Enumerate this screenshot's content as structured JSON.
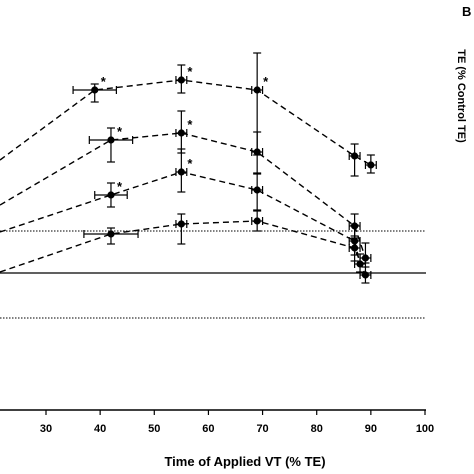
{
  "panel_letter": "B",
  "chart_data": {
    "type": "line",
    "xlabel": "Time of Applied VT (% TE)",
    "ylabel": "TE (% Control TE)",
    "xlim": [
      20,
      100
    ],
    "x_ticks": [
      30,
      40,
      50,
      60,
      70,
      80,
      90,
      100
    ],
    "y_reference_lines": [
      {
        "style": "dotted",
        "level": "upper"
      },
      {
        "style": "solid",
        "level": "middle"
      },
      {
        "style": "dotted",
        "level": "lower"
      }
    ],
    "series": [
      {
        "points": [
          {
            "x": 39,
            "y": 90,
            "xerr": 4,
            "yerr_up": 6,
            "yerr_down": 12,
            "sig": true
          },
          {
            "x": 55,
            "y": 80,
            "xerr": 1,
            "yerr_up": 15,
            "yerr_down": 13,
            "sig": true
          },
          {
            "x": 69,
            "y": 90,
            "xerr": 1,
            "yerr_up": 37,
            "yerr_down": 65,
            "sig": true
          },
          {
            "x": 87,
            "y": 156,
            "xerr": 1,
            "yerr_up": 12,
            "yerr_down": 20,
            "sig": false
          },
          {
            "x": 90,
            "y": 165,
            "xerr": 1,
            "yerr_up": 10,
            "yerr_down": 8,
            "sig": false
          }
        ]
      },
      {
        "points": [
          {
            "x": 42,
            "y": 140,
            "xerr": 4,
            "yerr_up": 12,
            "yerr_down": 22,
            "sig": true
          },
          {
            "x": 55,
            "y": 133,
            "xerr": 1,
            "yerr_up": 22,
            "yerr_down": 20,
            "sig": true
          },
          {
            "x": 69,
            "y": 152,
            "xerr": 1,
            "yerr_up": 20,
            "yerr_down": 22,
            "sig": false
          },
          {
            "x": 87,
            "y": 226,
            "xerr": 1,
            "yerr_up": 12,
            "yerr_down": 12,
            "sig": false
          },
          {
            "x": 89,
            "y": 258,
            "xerr": 1,
            "yerr_up": 15,
            "yerr_down": 5,
            "sig": false
          }
        ]
      },
      {
        "points": [
          {
            "x": 42,
            "y": 195,
            "xerr": 3,
            "yerr_up": 12,
            "yerr_down": 12,
            "sig": true
          },
          {
            "x": 55,
            "y": 172,
            "xerr": 1,
            "yerr_up": 23,
            "yerr_down": 20,
            "sig": true
          },
          {
            "x": 69,
            "y": 190,
            "xerr": 1,
            "yerr_up": 17,
            "yerr_down": 20,
            "sig": false
          },
          {
            "x": 87,
            "y": 241,
            "xerr": 1,
            "yerr_up": 16,
            "yerr_down": 14,
            "sig": false
          },
          {
            "x": 88,
            "y": 264,
            "xerr": 1,
            "yerr_up": 10,
            "yerr_down": 8,
            "sig": false
          }
        ]
      },
      {
        "points": [
          {
            "x": 42,
            "y": 234,
            "xerr": 5,
            "yerr_up": 6,
            "yerr_down": 10,
            "sig": false
          },
          {
            "x": 55,
            "y": 224,
            "xerr": 1,
            "yerr_up": 10,
            "yerr_down": 20,
            "sig": false
          },
          {
            "x": 69,
            "y": 221,
            "xerr": 1,
            "yerr_up": 10,
            "yerr_down": 10,
            "sig": false
          },
          {
            "x": 87,
            "y": 248,
            "xerr": 1,
            "yerr_up": 12,
            "yerr_down": 13,
            "sig": false
          },
          {
            "x": 89,
            "y": 275,
            "xerr": 1,
            "yerr_up": 8,
            "yerr_down": 8,
            "sig": false
          }
        ]
      }
    ],
    "series_start_y": [
      160,
      205,
      232,
      272
    ],
    "significance_marker": "*",
    "grid": false,
    "legend": "none"
  }
}
